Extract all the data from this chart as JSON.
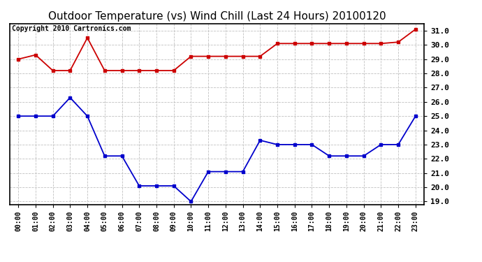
{
  "title": "Outdoor Temperature (vs) Wind Chill (Last 24 Hours) 20100120",
  "copyright": "Copyright 2010 Cartronics.com",
  "hours": [
    "00:00",
    "01:00",
    "02:00",
    "03:00",
    "04:00",
    "05:00",
    "06:00",
    "07:00",
    "08:00",
    "09:00",
    "10:00",
    "11:00",
    "12:00",
    "13:00",
    "14:00",
    "15:00",
    "16:00",
    "17:00",
    "18:00",
    "19:00",
    "20:00",
    "21:00",
    "22:00",
    "23:00"
  ],
  "temp": [
    25.0,
    25.0,
    25.0,
    26.3,
    25.0,
    22.2,
    22.2,
    20.1,
    20.1,
    20.1,
    19.0,
    21.1,
    21.1,
    21.1,
    23.3,
    23.0,
    23.0,
    23.0,
    22.2,
    22.2,
    22.2,
    23.0,
    23.0,
    25.0
  ],
  "wind_chill": [
    29.0,
    29.3,
    28.2,
    28.2,
    30.5,
    28.2,
    28.2,
    28.2,
    28.2,
    28.2,
    29.2,
    29.2,
    29.2,
    29.2,
    29.2,
    30.1,
    30.1,
    30.1,
    30.1,
    30.1,
    30.1,
    30.1,
    30.2,
    31.1
  ],
  "temp_color": "#0000cc",
  "wind_chill_color": "#cc0000",
  "bg_color": "#ffffff",
  "grid_color": "#c0c0c0",
  "ylim_min": 18.8,
  "ylim_max": 31.5,
  "yticks": [
    19.0,
    20.0,
    21.0,
    22.0,
    23.0,
    24.0,
    25.0,
    26.0,
    27.0,
    28.0,
    29.0,
    30.0,
    31.0
  ],
  "title_fontsize": 11,
  "copyright_fontsize": 7,
  "xtick_fontsize": 7,
  "ytick_fontsize": 8,
  "marker": "s",
  "markersize": 3,
  "linewidth": 1.3
}
